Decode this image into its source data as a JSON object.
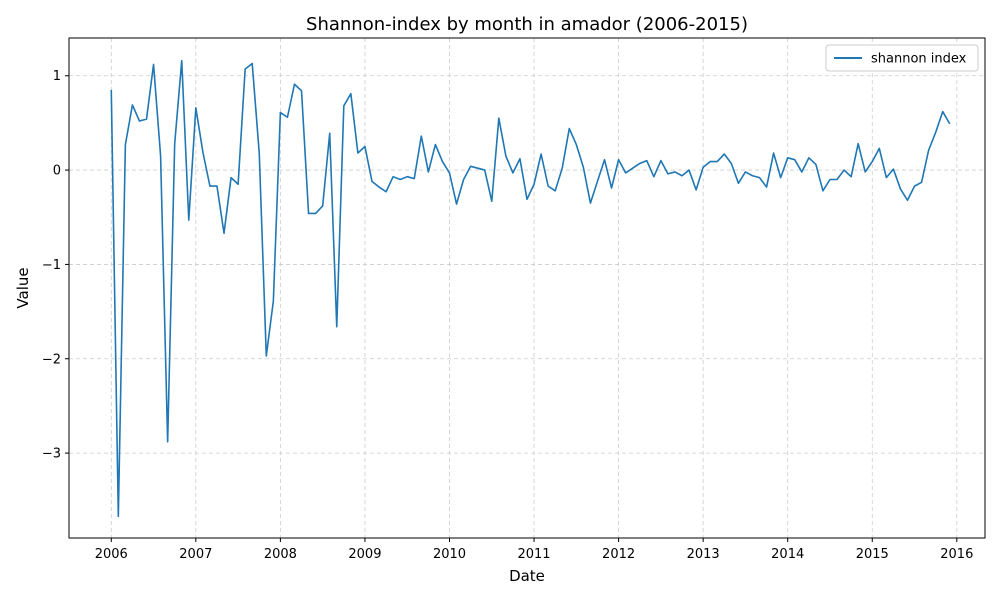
{
  "chart_data": {
    "type": "line",
    "title": "Shannon-index by month in amador (2006-2015)",
    "xlabel": "Date",
    "ylabel": "Value",
    "xlim": [
      "2005-07",
      "2016-05"
    ],
    "ylim": [
      -3.9,
      1.4
    ],
    "x_ticks": [
      "2006",
      "2007",
      "2008",
      "2009",
      "2010",
      "2011",
      "2012",
      "2013",
      "2014",
      "2015",
      "2016"
    ],
    "y_ticks": [
      1,
      0,
      -1,
      -2,
      -3
    ],
    "y_tick_labels": [
      "1",
      "0",
      "−1",
      "−2",
      "−3"
    ],
    "grid": true,
    "legend_position": "top-right",
    "series": [
      {
        "name": "shannon index",
        "color": "#1f77b4",
        "x": [
          "2006-01",
          "2006-02",
          "2006-03",
          "2006-04",
          "2006-05",
          "2006-06",
          "2006-07",
          "2006-08",
          "2006-09",
          "2006-10",
          "2006-11",
          "2006-12",
          "2007-01",
          "2007-02",
          "2007-03",
          "2007-04",
          "2007-05",
          "2007-06",
          "2007-07",
          "2007-08",
          "2007-09",
          "2007-10",
          "2007-11",
          "2007-12",
          "2008-01",
          "2008-02",
          "2008-03",
          "2008-04",
          "2008-05",
          "2008-06",
          "2008-07",
          "2008-08",
          "2008-09",
          "2008-10",
          "2008-11",
          "2008-12",
          "2009-01",
          "2009-02",
          "2009-03",
          "2009-04",
          "2009-05",
          "2009-06",
          "2009-07",
          "2009-08",
          "2009-09",
          "2009-10",
          "2009-11",
          "2009-12",
          "2010-01",
          "2010-02",
          "2010-03",
          "2010-04",
          "2010-05",
          "2010-06",
          "2010-07",
          "2010-08",
          "2010-09",
          "2010-10",
          "2010-11",
          "2010-12",
          "2011-01",
          "2011-02",
          "2011-03",
          "2011-04",
          "2011-05",
          "2011-06",
          "2011-07",
          "2011-08",
          "2011-09",
          "2011-10",
          "2011-11",
          "2011-12",
          "2012-01",
          "2012-02",
          "2012-03",
          "2012-04",
          "2012-05",
          "2012-06",
          "2012-07",
          "2012-08",
          "2012-09",
          "2012-10",
          "2012-11",
          "2012-12",
          "2013-01",
          "2013-02",
          "2013-03",
          "2013-04",
          "2013-05",
          "2013-06",
          "2013-07",
          "2013-08",
          "2013-09",
          "2013-10",
          "2013-11",
          "2013-12",
          "2014-01",
          "2014-02",
          "2014-03",
          "2014-04",
          "2014-05",
          "2014-06",
          "2014-07",
          "2014-08",
          "2014-09",
          "2014-10",
          "2014-11",
          "2014-12",
          "2015-01",
          "2015-02",
          "2015-03",
          "2015-04",
          "2015-05",
          "2015-06",
          "2015-07",
          "2015-08",
          "2015-09",
          "2015-10",
          "2015-11",
          "2015-12"
        ],
        "values": [
          0.85,
          -3.67,
          0.27,
          0.69,
          0.52,
          0.54,
          1.12,
          0.15,
          -2.88,
          0.28,
          1.16,
          -0.53,
          0.66,
          0.19,
          -0.17,
          -0.17,
          -0.67,
          -0.08,
          -0.15,
          1.07,
          1.13,
          0.18,
          -1.97,
          -1.39,
          0.61,
          0.56,
          0.91,
          0.84,
          -0.46,
          -0.46,
          -0.38,
          0.39,
          -1.66,
          0.68,
          0.81,
          0.18,
          0.25,
          -0.12,
          -0.18,
          -0.23,
          -0.07,
          -0.1,
          -0.07,
          -0.09,
          0.36,
          -0.02,
          0.27,
          0.09,
          -0.03,
          -0.36,
          -0.1,
          0.04,
          0.02,
          0.0,
          -0.33,
          0.55,
          0.15,
          -0.03,
          0.12,
          -0.31,
          -0.15,
          0.17,
          -0.17,
          -0.22,
          0.02,
          0.44,
          0.27,
          0.03,
          -0.35,
          -0.12,
          0.11,
          -0.19,
          0.11,
          -0.03,
          0.02,
          0.07,
          0.1,
          -0.07,
          0.1,
          -0.04,
          -0.02,
          -0.06,
          0.0,
          -0.21,
          0.03,
          0.09,
          0.09,
          0.17,
          0.07,
          -0.14,
          -0.02,
          -0.06,
          -0.08,
          -0.18,
          0.18,
          -0.08,
          0.13,
          0.11,
          -0.02,
          0.13,
          0.06,
          -0.22,
          -0.1,
          -0.1,
          0.0,
          -0.07,
          0.28,
          -0.02,
          0.09,
          0.23,
          -0.08,
          0.01,
          -0.2,
          -0.32,
          -0.17,
          -0.13,
          0.21,
          0.4,
          0.62,
          0.49
        ]
      }
    ]
  }
}
